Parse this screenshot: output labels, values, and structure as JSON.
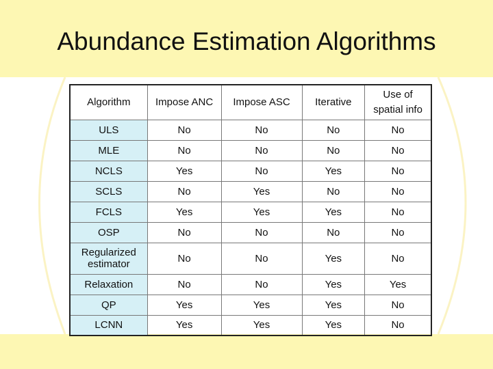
{
  "slide": {
    "title": "Abundance Estimation Algorithms"
  },
  "table": {
    "headers": [
      "Algorithm",
      "Impose ANC",
      "Impose ASC",
      "Iterative",
      "Use of spatial info"
    ],
    "rows": [
      {
        "name": "ULS",
        "values": [
          "No",
          "No",
          "No",
          "No"
        ]
      },
      {
        "name": "MLE",
        "values": [
          "No",
          "No",
          "No",
          "No"
        ]
      },
      {
        "name": "NCLS",
        "values": [
          "Yes",
          "No",
          "Yes",
          "No"
        ]
      },
      {
        "name": "SCLS",
        "values": [
          "No",
          "Yes",
          "No",
          "No"
        ]
      },
      {
        "name": "FCLS",
        "values": [
          "Yes",
          "Yes",
          "Yes",
          "No"
        ]
      },
      {
        "name": "OSP",
        "values": [
          "No",
          "No",
          "No",
          "No"
        ]
      },
      {
        "name": "Regularized estimator",
        "values": [
          "No",
          "No",
          "Yes",
          "No"
        ]
      },
      {
        "name": "Relaxation",
        "values": [
          "No",
          "No",
          "Yes",
          "Yes"
        ]
      },
      {
        "name": "QP",
        "values": [
          "Yes",
          "Yes",
          "Yes",
          "No"
        ]
      },
      {
        "name": "LCNN",
        "values": [
          "Yes",
          "Yes",
          "Yes",
          "No"
        ]
      }
    ]
  },
  "colors": {
    "band": "#fdf7b3",
    "row_header": "#d6f0f6"
  }
}
